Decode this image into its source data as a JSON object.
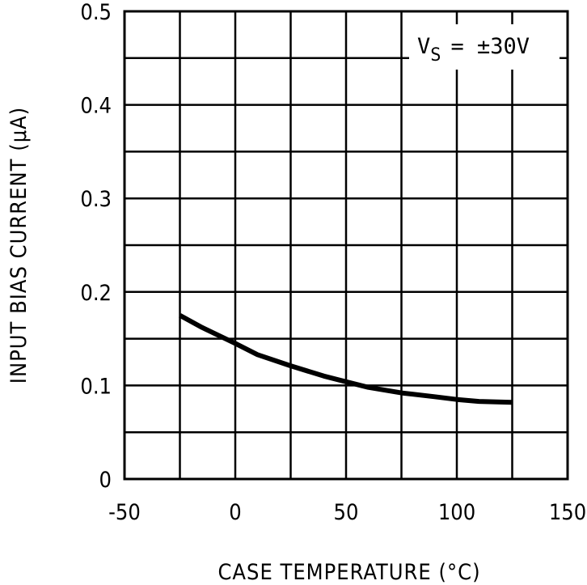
{
  "chart_data": {
    "type": "line",
    "title": "",
    "xlabel": "CASE TEMPERATURE (°C)",
    "ylabel": "INPUT BIAS CURRENT (μA)",
    "xlim": [
      -50,
      150
    ],
    "ylim": [
      0,
      0.5
    ],
    "xticks": [
      "-50",
      "0",
      "50",
      "100",
      "150"
    ],
    "yticks": [
      "0",
      "0.1",
      "0.2",
      "0.3",
      "0.4",
      "0.5"
    ],
    "grid": true,
    "annotation": {
      "base": "V",
      "subscript": "S",
      "rest": "= ±30V"
    },
    "series": [
      {
        "x": [
          -25,
          -15,
          0,
          10,
          25,
          40,
          50,
          60,
          75,
          90,
          100,
          110,
          125
        ],
        "y": [
          0.175,
          0.162,
          0.145,
          0.133,
          0.121,
          0.11,
          0.104,
          0.098,
          0.092,
          0.088,
          0.085,
          0.083,
          0.082
        ],
        "color": "#000000"
      }
    ]
  }
}
